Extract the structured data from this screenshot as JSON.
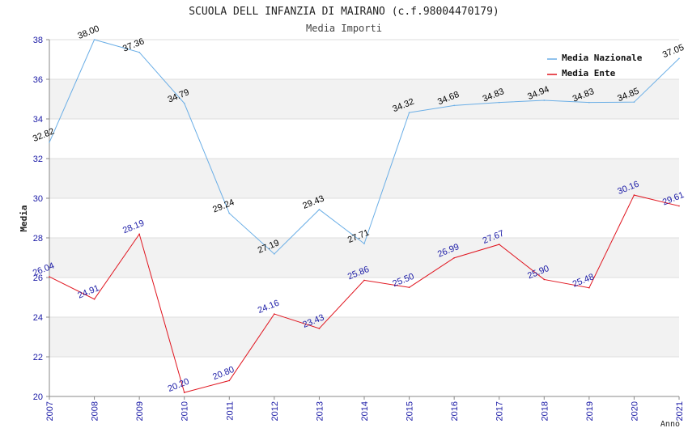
{
  "chart_data": {
    "type": "line",
    "title": "SCUOLA DELL INFANZIA DI MAIRANO (c.f.98004470179)",
    "subtitle": "Media Importi",
    "ylabel": "Media",
    "xlabel": "Anno",
    "ylim": [
      20,
      38
    ],
    "yticks": [
      20,
      22,
      24,
      26,
      28,
      30,
      32,
      34,
      36,
      38
    ],
    "x": [
      "2007",
      "2008",
      "2009",
      "2010",
      "2011",
      "2012",
      "2013",
      "2014",
      "2015",
      "2016",
      "2017",
      "2018",
      "2019",
      "2020",
      "2021"
    ],
    "grid": "horizontal-bands",
    "legend_position": "top-right",
    "series": [
      {
        "name": "Media Nazionale",
        "color": "#6aaee6",
        "values": [
          32.82,
          38.0,
          37.36,
          34.79,
          29.24,
          27.19,
          29.43,
          27.71,
          34.32,
          34.68,
          34.83,
          34.94,
          34.83,
          34.85,
          37.05
        ],
        "labels": [
          "32.82",
          "38.00",
          "37.36",
          "34.79",
          "29.24",
          "27.19",
          "29.43",
          "27.71",
          "34.32",
          "34.68",
          "34.83",
          "34.94",
          "34.83",
          "34.85",
          "37.05"
        ]
      },
      {
        "name": "Media Ente",
        "color": "#e0141e",
        "values": [
          26.04,
          24.91,
          28.19,
          20.2,
          20.8,
          24.16,
          23.43,
          25.86,
          25.5,
          26.99,
          27.67,
          25.9,
          25.48,
          30.16,
          29.61
        ],
        "labels": [
          "26.04",
          "24.91",
          "28.19",
          "20.20",
          "20.80",
          "24.16",
          "23.43",
          "25.86",
          "25.50",
          "26.99",
          "27.67",
          "25.90",
          "25.48",
          "30.16",
          "29.61"
        ]
      }
    ]
  }
}
